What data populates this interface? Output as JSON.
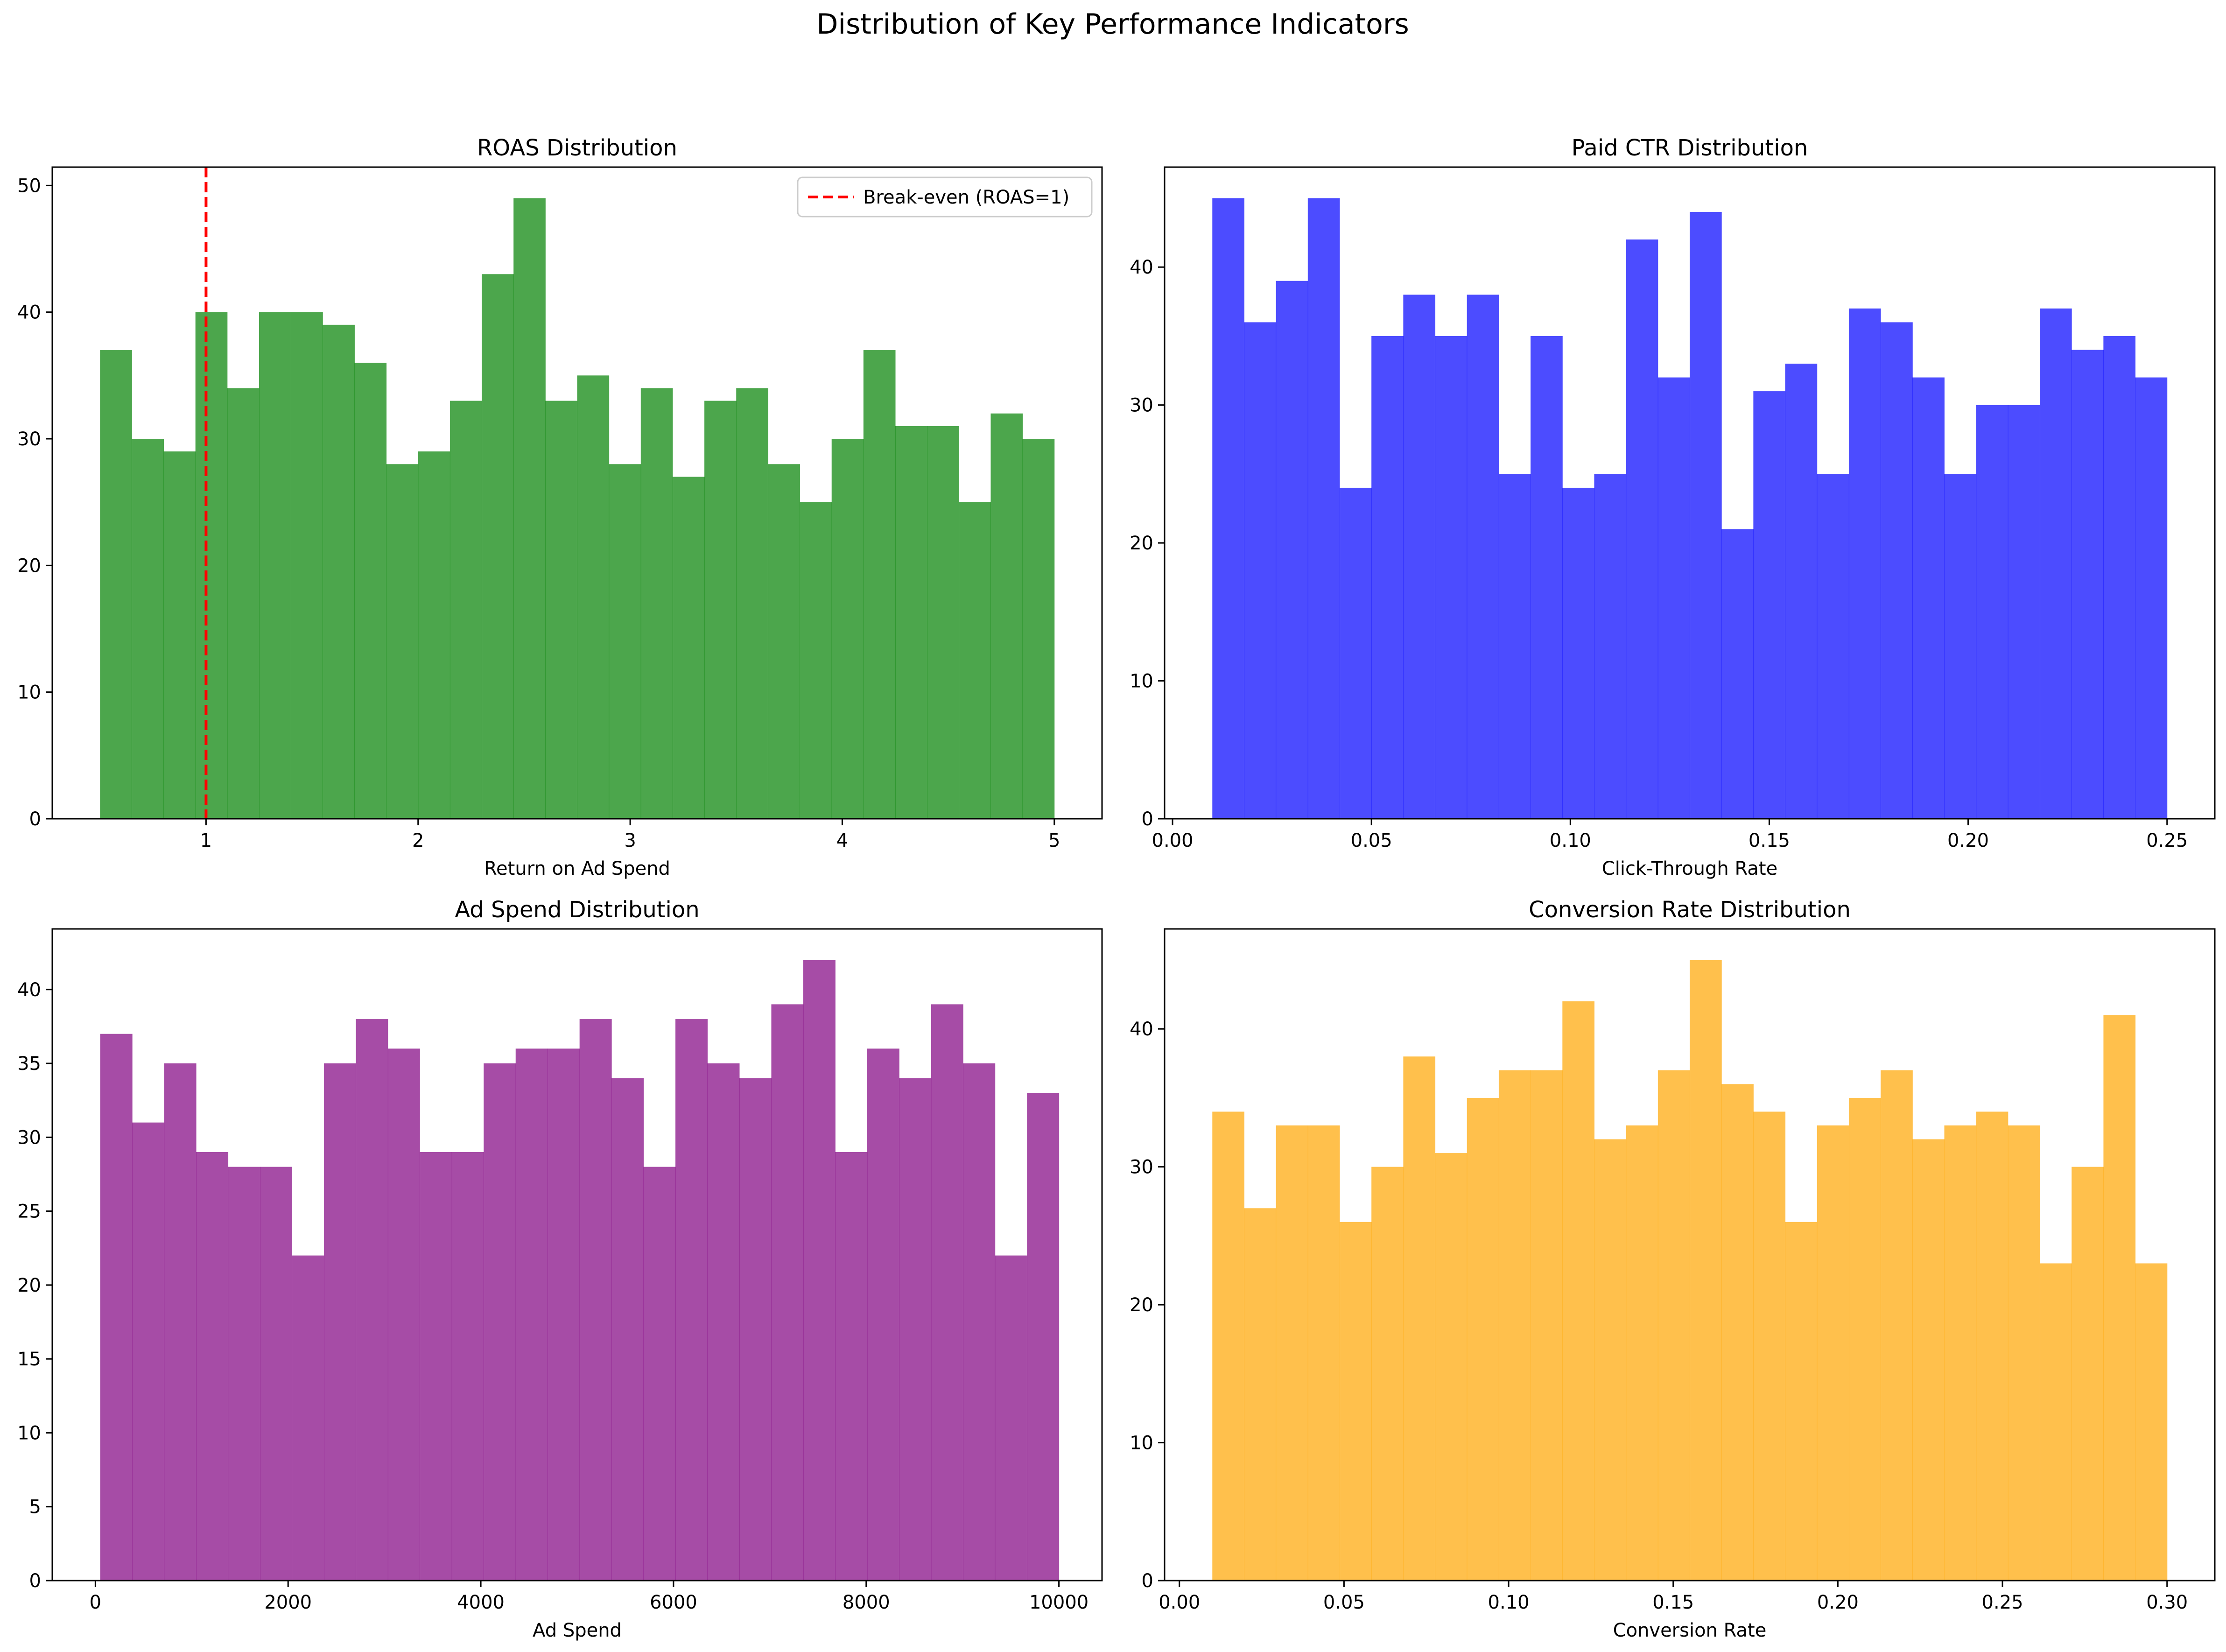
{
  "figure": {
    "title": "Distribution of Key Performance Indicators"
  },
  "chart_data": [
    {
      "type": "bar",
      "title": "ROAS Distribution",
      "xlabel": "Return on Ad Spend",
      "ylabel": "",
      "color": "#008000",
      "bin_start": 0.5,
      "bin_width": 0.15,
      "values": [
        37,
        30,
        29,
        40,
        34,
        40,
        40,
        39,
        36,
        28,
        29,
        33,
        43,
        49,
        33,
        35,
        28,
        34,
        27,
        33,
        34,
        28,
        25,
        30,
        37,
        31,
        31,
        25,
        32,
        30
      ],
      "xlim": [
        0.275,
        5.225
      ],
      "ylim": [
        0,
        51.45
      ],
      "xticks": [
        1,
        2,
        3,
        4,
        5
      ],
      "xtick_labels": [
        "1",
        "2",
        "3",
        "4",
        "5"
      ],
      "yticks": [
        0,
        10,
        20,
        30,
        40,
        50
      ],
      "ytick_labels": [
        "0",
        "10",
        "20",
        "30",
        "40",
        "50"
      ],
      "reference_line": {
        "x": 1,
        "color": "#ff0000",
        "style": "dashed"
      },
      "legend": {
        "position": "top-right",
        "entries": [
          "Break-even (ROAS=1)"
        ]
      }
    },
    {
      "type": "bar",
      "title": "Paid CTR Distribution",
      "xlabel": "Click-Through Rate",
      "ylabel": "",
      "color": "#0000ff",
      "bin_start": 0.01,
      "bin_width": 0.008,
      "values": [
        45,
        36,
        39,
        45,
        24,
        35,
        38,
        35,
        38,
        25,
        35,
        24,
        25,
        42,
        32,
        44,
        21,
        31,
        33,
        25,
        37,
        36,
        32,
        25,
        30,
        30,
        37,
        34,
        35,
        32
      ],
      "xlim": [
        -0.002,
        0.262
      ],
      "ylim": [
        0,
        47.25
      ],
      "xticks": [
        0,
        0.05,
        0.1,
        0.15,
        0.2,
        0.25
      ],
      "xtick_labels": [
        "0.00",
        "0.05",
        "0.10",
        "0.15",
        "0.20",
        "0.25"
      ],
      "yticks": [
        0,
        10,
        20,
        30,
        40
      ],
      "ytick_labels": [
        "0",
        "10",
        "20",
        "30",
        "40"
      ]
    },
    {
      "type": "bar",
      "title": "Ad Spend Distribution",
      "xlabel": "Ad Spend",
      "ylabel": "",
      "color": "#800080",
      "bin_start": 50,
      "bin_width": 331.67,
      "values": [
        37,
        31,
        35,
        29,
        28,
        28,
        22,
        35,
        38,
        36,
        29,
        29,
        35,
        36,
        36,
        38,
        34,
        28,
        38,
        35,
        34,
        39,
        42,
        29,
        36,
        34,
        39,
        35,
        22,
        33
      ],
      "xlim": [
        -447.5,
        10447.5
      ],
      "ylim": [
        0,
        44.1
      ],
      "xticks": [
        0,
        2000,
        4000,
        6000,
        8000,
        10000
      ],
      "xtick_labels": [
        "0",
        "2000",
        "4000",
        "6000",
        "8000",
        "10000"
      ],
      "yticks": [
        0,
        5,
        10,
        15,
        20,
        25,
        30,
        35,
        40
      ],
      "ytick_labels": [
        "0",
        "5",
        "10",
        "15",
        "20",
        "25",
        "30",
        "35",
        "40"
      ]
    },
    {
      "type": "bar",
      "title": "Conversion Rate Distribution",
      "xlabel": "Conversion Rate",
      "ylabel": "",
      "color": "#ffa500",
      "bin_start": 0.01,
      "bin_width": 0.009667,
      "values": [
        34,
        27,
        33,
        33,
        26,
        30,
        38,
        31,
        35,
        37,
        37,
        42,
        32,
        33,
        37,
        45,
        36,
        34,
        26,
        33,
        35,
        37,
        32,
        33,
        34,
        33,
        23,
        30,
        41,
        23
      ],
      "xlim": [
        -0.0045,
        0.3145
      ],
      "ylim": [
        0,
        47.25
      ],
      "xticks": [
        0,
        0.05,
        0.1,
        0.15,
        0.2,
        0.25,
        0.3
      ],
      "xtick_labels": [
        "0.00",
        "0.05",
        "0.10",
        "0.15",
        "0.20",
        "0.25",
        "0.30"
      ],
      "yticks": [
        0,
        10,
        20,
        30,
        40
      ],
      "ytick_labels": [
        "0",
        "10",
        "20",
        "30",
        "40"
      ]
    }
  ]
}
